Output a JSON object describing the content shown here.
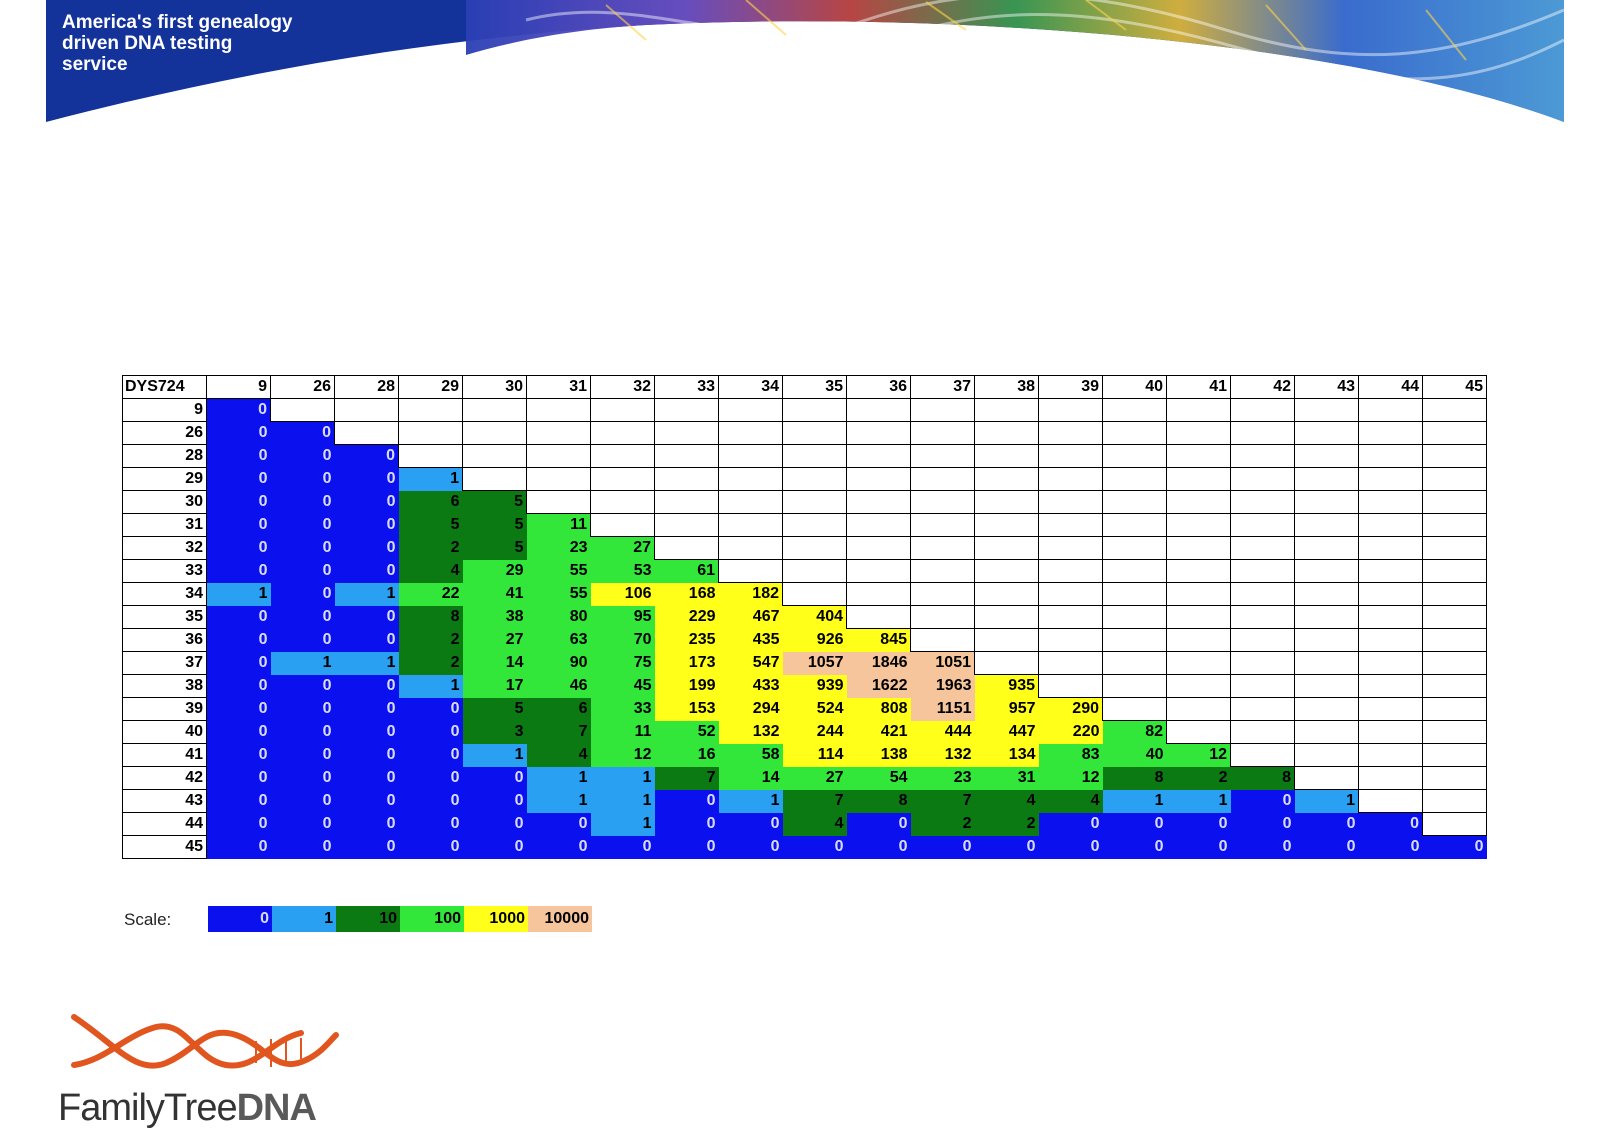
{
  "header": {
    "tagline_lines": [
      "America's first genealogy",
      "driven DNA testing",
      "service"
    ]
  },
  "table": {
    "corner_label": "DYS724",
    "columns": [
      "9",
      "26",
      "28",
      "29",
      "30",
      "31",
      "32",
      "33",
      "34",
      "35",
      "36",
      "37",
      "38",
      "39",
      "40",
      "41",
      "42",
      "43",
      "44",
      "45"
    ],
    "rows": [
      {
        "label": "9",
        "cells": [
          "0"
        ]
      },
      {
        "label": "26",
        "cells": [
          "0",
          "0"
        ]
      },
      {
        "label": "28",
        "cells": [
          "0",
          "0",
          "0"
        ]
      },
      {
        "label": "29",
        "cells": [
          "0",
          "0",
          "0",
          "1"
        ]
      },
      {
        "label": "30",
        "cells": [
          "0",
          "0",
          "0",
          "6",
          "5"
        ]
      },
      {
        "label": "31",
        "cells": [
          "0",
          "0",
          "0",
          "5",
          "5",
          "11"
        ]
      },
      {
        "label": "32",
        "cells": [
          "0",
          "0",
          "0",
          "2",
          "5",
          "23",
          "27"
        ]
      },
      {
        "label": "33",
        "cells": [
          "0",
          "0",
          "0",
          "4",
          "29",
          "55",
          "53",
          "61"
        ]
      },
      {
        "label": "34",
        "cells": [
          "1",
          "0",
          "1",
          "22",
          "41",
          "55",
          "106",
          "168",
          "182"
        ]
      },
      {
        "label": "35",
        "cells": [
          "0",
          "0",
          "0",
          "8",
          "38",
          "80",
          "95",
          "229",
          "467",
          "404"
        ]
      },
      {
        "label": "36",
        "cells": [
          "0",
          "0",
          "0",
          "2",
          "27",
          "63",
          "70",
          "235",
          "435",
          "926",
          "845"
        ]
      },
      {
        "label": "37",
        "cells": [
          "0",
          "1",
          "1",
          "2",
          "14",
          "90",
          "75",
          "173",
          "547",
          "1057",
          "1846",
          "1051"
        ]
      },
      {
        "label": "38",
        "cells": [
          "0",
          "0",
          "0",
          "1",
          "17",
          "46",
          "45",
          "199",
          "433",
          "939",
          "1622",
          "1963",
          "935"
        ]
      },
      {
        "label": "39",
        "cells": [
          "0",
          "0",
          "0",
          "0",
          "5",
          "6",
          "33",
          "153",
          "294",
          "524",
          "808",
          "1151",
          "957",
          "290"
        ]
      },
      {
        "label": "40",
        "cells": [
          "0",
          "0",
          "0",
          "0",
          "3",
          "7",
          "11",
          "52",
          "132",
          "244",
          "421",
          "444",
          "447",
          "220",
          "82"
        ]
      },
      {
        "label": "41",
        "cells": [
          "0",
          "0",
          "0",
          "0",
          "1",
          "4",
          "12",
          "16",
          "58",
          "114",
          "138",
          "132",
          "134",
          "83",
          "40",
          "12"
        ]
      },
      {
        "label": "42",
        "cells": [
          "0",
          "0",
          "0",
          "0",
          "0",
          "1",
          "1",
          "7",
          "14",
          "27",
          "54",
          "23",
          "31",
          "12",
          "8",
          "2",
          "8"
        ]
      },
      {
        "label": "43",
        "cells": [
          "0",
          "0",
          "0",
          "0",
          "0",
          "1",
          "1",
          "0",
          "1",
          "7",
          "8",
          "7",
          "4",
          "4",
          "1",
          "1",
          "0",
          "1"
        ]
      },
      {
        "label": "44",
        "cells": [
          "0",
          "0",
          "0",
          "0",
          "0",
          "0",
          "1",
          "0",
          "0",
          "4",
          "0",
          "2",
          "2",
          "0",
          "0",
          "0",
          "0",
          "0",
          "0"
        ]
      },
      {
        "label": "45",
        "cells": [
          "0",
          "0",
          "0",
          "0",
          "0",
          "0",
          "0",
          "0",
          "0",
          "0",
          "0",
          "0",
          "0",
          "0",
          "0",
          "0",
          "0",
          "0",
          "0",
          "0"
        ]
      }
    ]
  },
  "scale": {
    "label": "Scale:",
    "steps": [
      {
        "value": "0",
        "color": "#0a10ee"
      },
      {
        "value": "1",
        "color": "#2aa0f2"
      },
      {
        "value": "10",
        "color": "#0b7a12"
      },
      {
        "value": "100",
        "color": "#33e63a"
      },
      {
        "value": "1000",
        "color": "#ffff1a"
      },
      {
        "value": "10000",
        "color": "#f6c59b"
      }
    ]
  },
  "logo": {
    "text_light": "FamilyTree",
    "text_bold": "DNA"
  }
}
